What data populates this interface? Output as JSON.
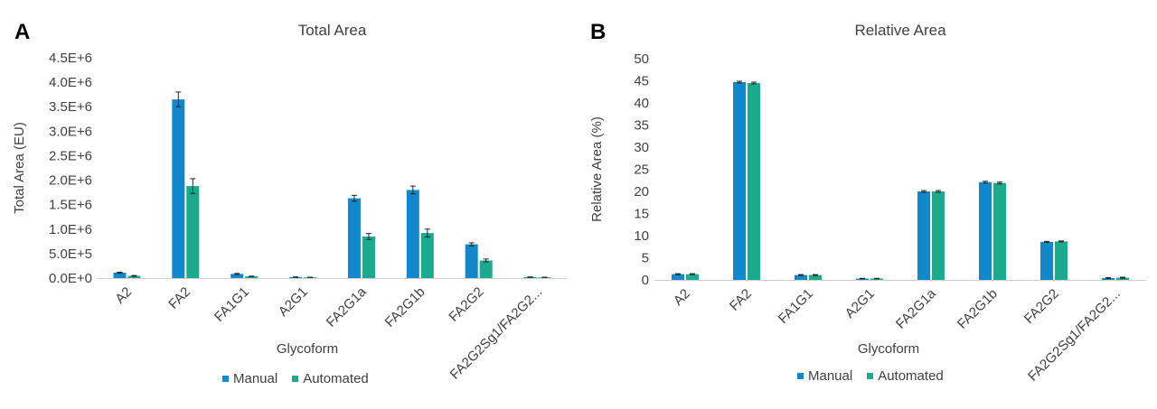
{
  "panels": {
    "a": {
      "letter": "A"
    },
    "b": {
      "letter": "B"
    }
  },
  "colors": {
    "manual": "#1188cc",
    "automated": "#1aab8f",
    "axis": "#d0d0d0",
    "text": "#404040"
  },
  "legend": {
    "manual": "Manual",
    "automated": "Automated"
  },
  "chart_data": [
    {
      "type": "bar",
      "title": "Total Area",
      "xlabel": "Glycoform",
      "ylabel": "Total Area (EU)",
      "ylim": [
        0,
        4500000
      ],
      "yticks": [
        "0.0E+0",
        "5.0E+5",
        "1.0E+6",
        "1.5E+6",
        "2.0E+6",
        "2.5E+6",
        "3.0E+6",
        "3.5E+6",
        "4.0E+6",
        "4.5E+6"
      ],
      "categories": [
        "A2",
        "FA2",
        "FA1G1",
        "A2G1",
        "FA2G1a",
        "FA2G1b",
        "FA2G2",
        "FA2G2Sg1/FA2G2..."
      ],
      "series": [
        {
          "name": "Manual",
          "values": [
            110000,
            3650000,
            85000,
            20000,
            1630000,
            1800000,
            690000,
            20000
          ],
          "errors": [
            10000,
            150000,
            10000,
            5000,
            60000,
            80000,
            30000,
            5000
          ]
        },
        {
          "name": "Automated",
          "values": [
            45000,
            1880000,
            35000,
            15000,
            850000,
            920000,
            360000,
            15000
          ],
          "errors": [
            8000,
            150000,
            5000,
            3000,
            60000,
            80000,
            30000,
            3000
          ]
        }
      ],
      "legend_position": "bottom"
    },
    {
      "type": "bar",
      "title": "Relative Area",
      "xlabel": "Glycoform",
      "ylabel": "Relative Area (%)",
      "ylim": [
        0,
        50
      ],
      "yticks": [
        "0",
        "5",
        "10",
        "15",
        "20",
        "25",
        "30",
        "35",
        "40",
        "45",
        "50"
      ],
      "categories": [
        "A2",
        "FA2",
        "FA1G1",
        "A2G1",
        "FA2G1a",
        "FA2G1b",
        "FA2G2",
        "FA2G2Sg1/FA2G2..."
      ],
      "series": [
        {
          "name": "Manual",
          "values": [
            1.3,
            44.7,
            1.1,
            0.3,
            20.0,
            22.1,
            8.6,
            0.4
          ],
          "errors": [
            0.1,
            0.2,
            0.1,
            0.05,
            0.2,
            0.2,
            0.1,
            0.1
          ]
        },
        {
          "name": "Automated",
          "values": [
            1.3,
            44.5,
            1.1,
            0.3,
            20.0,
            21.9,
            8.7,
            0.5
          ],
          "errors": [
            0.1,
            0.2,
            0.1,
            0.05,
            0.2,
            0.2,
            0.1,
            0.1
          ]
        }
      ],
      "legend_position": "bottom"
    }
  ]
}
